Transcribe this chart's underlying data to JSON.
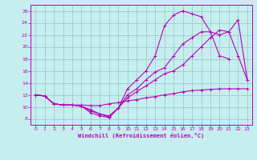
{
  "background_color": "#c6eeee",
  "grid_color": "#99cccc",
  "line_color": "#bb00bb",
  "xlabel": "Windchill (Refroidissement éolien,°C)",
  "xlim": [
    -0.5,
    23.5
  ],
  "ylim": [
    7,
    27
  ],
  "xticks": [
    0,
    1,
    2,
    3,
    4,
    5,
    6,
    7,
    8,
    9,
    10,
    11,
    12,
    13,
    14,
    15,
    16,
    17,
    18,
    19,
    20,
    21,
    22,
    23
  ],
  "yticks": [
    8,
    10,
    12,
    14,
    16,
    18,
    20,
    22,
    24,
    26
  ],
  "s1_x": [
    0,
    1,
    2,
    3,
    4,
    5,
    6,
    7,
    8,
    9,
    10,
    11,
    12,
    13,
    14,
    15,
    16,
    17,
    18,
    19,
    20,
    21,
    22,
    23
  ],
  "s1_y": [
    12,
    11.8,
    10.5,
    10.3,
    10.3,
    10.3,
    10.2,
    10.2,
    10.5,
    10.7,
    11.0,
    11.2,
    11.5,
    11.7,
    12.0,
    12.2,
    12.5,
    12.7,
    12.8,
    12.9,
    13.0,
    13.0,
    13.0,
    13.0
  ],
  "s2_x": [
    0,
    1,
    2,
    3,
    4,
    5,
    6,
    7,
    8,
    9,
    10,
    11,
    12,
    13,
    14,
    15,
    16,
    17,
    18,
    19,
    20,
    21
  ],
  "s2_y": [
    12,
    11.8,
    10.5,
    10.3,
    10.3,
    10.1,
    9.5,
    8.8,
    8.5,
    9.8,
    13.0,
    14.5,
    16.0,
    18.5,
    23.5,
    25.3,
    26.0,
    25.5,
    25.0,
    22.5,
    18.5,
    18.0
  ],
  "s3_x": [
    0,
    1,
    2,
    3,
    4,
    5,
    6,
    7,
    8,
    9,
    10,
    11,
    12,
    13,
    14,
    15,
    16,
    17,
    18,
    19,
    20,
    21,
    22,
    23
  ],
  "s3_y": [
    12,
    11.8,
    10.5,
    10.3,
    10.3,
    10.1,
    9.3,
    8.8,
    8.3,
    9.8,
    12.0,
    13.0,
    14.5,
    15.8,
    16.5,
    18.5,
    20.5,
    21.5,
    22.5,
    22.5,
    22.0,
    22.5,
    18.5,
    14.5
  ],
  "s4_x": [
    0,
    1,
    2,
    3,
    4,
    5,
    6,
    7,
    8,
    9,
    10,
    11,
    12,
    13,
    14,
    15,
    16,
    17,
    18,
    19,
    20,
    21,
    22,
    23
  ],
  "s4_y": [
    12,
    11.8,
    10.5,
    10.3,
    10.3,
    10.1,
    9.0,
    8.5,
    8.2,
    9.8,
    11.5,
    12.5,
    13.5,
    14.5,
    15.5,
    16.0,
    17.0,
    18.5,
    20.0,
    21.5,
    22.8,
    22.5,
    24.5,
    14.5
  ]
}
